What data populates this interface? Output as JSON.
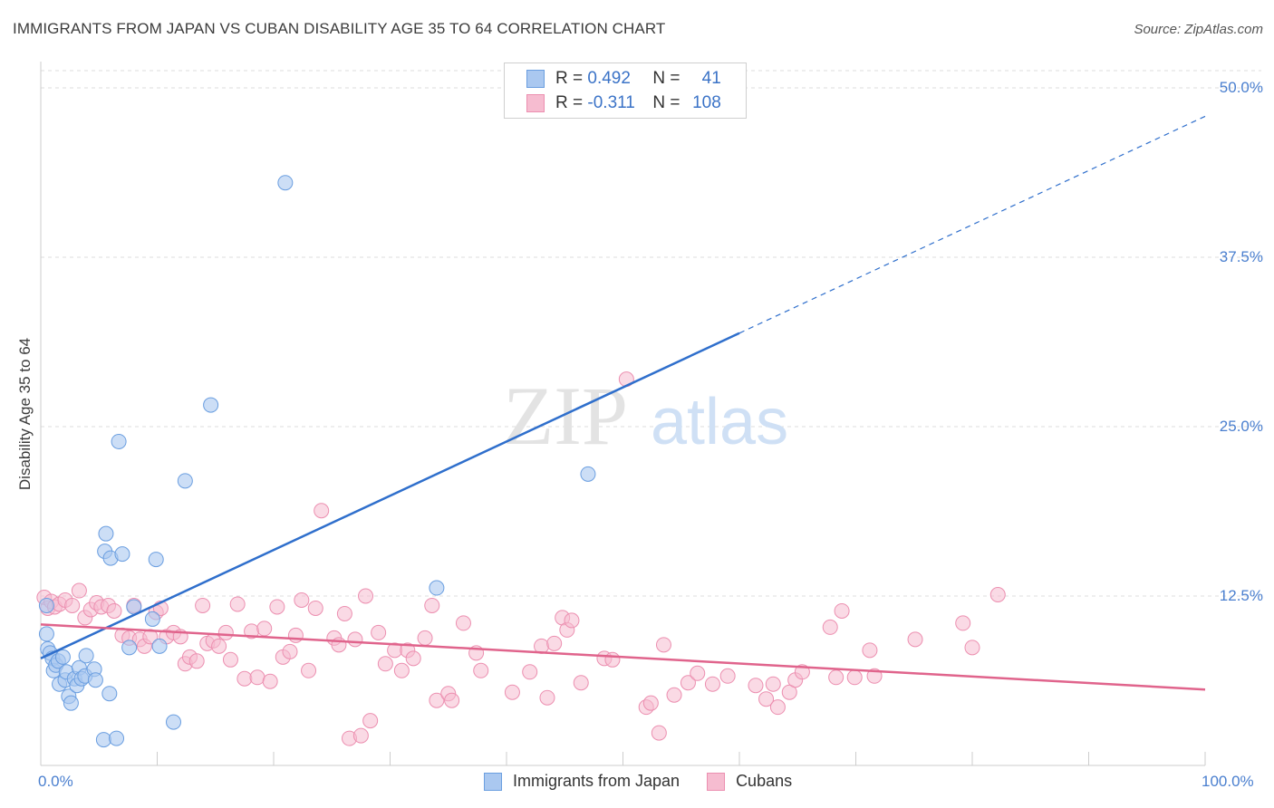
{
  "title": "IMMIGRANTS FROM JAPAN VS CUBAN DISABILITY AGE 35 TO 64 CORRELATION CHART",
  "source": "Source: ZipAtlas.com",
  "watermark": {
    "zip": "ZIP",
    "atlas": "atlas"
  },
  "legend": {
    "r_label": "R =",
    "n_label": "N =",
    "series1": {
      "r": "0.492",
      "n": "41"
    },
    "series2": {
      "r": "-0.311",
      "n": "108"
    }
  },
  "colors": {
    "japan_fill": "#aac8f0",
    "japan_stroke": "#6a9ee0",
    "japan_line": "#2f6fcc",
    "cuban_fill": "#f6bcd0",
    "cuban_stroke": "#ec8fb0",
    "cuban_line": "#e0648c",
    "tick_text": "#4a7fcf",
    "grid": "#dcdcdc"
  },
  "chart_data": {
    "type": "scatter",
    "title": "IMMIGRANTS FROM JAPAN VS CUBAN DISABILITY AGE 35 TO 64 CORRELATION CHART",
    "xlabel": "",
    "ylabel": "Disability Age 35 to 64",
    "xlim": [
      0,
      100
    ],
    "ylim": [
      0,
      50
    ],
    "x_tick_labels": [
      "0.0%",
      "100.0%"
    ],
    "y_ticks": [
      12.5,
      25.0,
      37.5,
      50.0
    ],
    "y_tick_labels": [
      "12.5%",
      "25.0%",
      "37.5%",
      "50.0%"
    ],
    "grid": true,
    "legend_position": "bottom-center",
    "series": [
      {
        "name": "Immigrants from Japan",
        "r": 0.492,
        "n": 41,
        "trend": {
          "x0": 0,
          "y0": 7.9,
          "x1": 60,
          "y1": 31.9,
          "dash_x1": 100,
          "dash_y1": 47.9
        },
        "points": [
          [
            0.5,
            11.8
          ],
          [
            0.5,
            9.7
          ],
          [
            0.6,
            8.6
          ],
          [
            0.8,
            8.3
          ],
          [
            1.0,
            7.9
          ],
          [
            1.1,
            7.0
          ],
          [
            1.3,
            7.4
          ],
          [
            1.5,
            7.7
          ],
          [
            1.6,
            6.0
          ],
          [
            1.9,
            8.0
          ],
          [
            2.1,
            6.3
          ],
          [
            2.2,
            6.9
          ],
          [
            2.4,
            5.1
          ],
          [
            2.6,
            4.6
          ],
          [
            2.9,
            6.4
          ],
          [
            3.1,
            5.9
          ],
          [
            3.3,
            7.2
          ],
          [
            3.5,
            6.4
          ],
          [
            3.8,
            6.6
          ],
          [
            3.9,
            8.1
          ],
          [
            4.6,
            7.1
          ],
          [
            4.7,
            6.3
          ],
          [
            5.4,
            1.9
          ],
          [
            5.5,
            15.8
          ],
          [
            5.6,
            17.1
          ],
          [
            5.9,
            5.3
          ],
          [
            6.0,
            15.3
          ],
          [
            6.5,
            2.0
          ],
          [
            7.0,
            15.6
          ],
          [
            7.6,
            8.7
          ],
          [
            8.0,
            11.7
          ],
          [
            9.6,
            10.8
          ],
          [
            9.9,
            15.2
          ],
          [
            10.2,
            8.8
          ],
          [
            11.4,
            3.2
          ],
          [
            12.4,
            21.0
          ],
          [
            14.6,
            26.6
          ],
          [
            21.0,
            43.0
          ],
          [
            34.0,
            13.1
          ],
          [
            47.0,
            21.5
          ],
          [
            6.7,
            23.9
          ]
        ]
      },
      {
        "name": "Cubans",
        "r": -0.311,
        "n": 108,
        "trend": {
          "x0": 0,
          "y0": 10.4,
          "x1": 100,
          "y1": 5.6
        },
        "points": [
          [
            0.3,
            12.4
          ],
          [
            0.6,
            11.6
          ],
          [
            0.9,
            12.1
          ],
          [
            1.2,
            11.7
          ],
          [
            1.6,
            11.9
          ],
          [
            2.1,
            12.2
          ],
          [
            2.7,
            11.8
          ],
          [
            3.3,
            12.9
          ],
          [
            3.8,
            10.9
          ],
          [
            4.3,
            11.5
          ],
          [
            4.8,
            12.0
          ],
          [
            5.2,
            11.7
          ],
          [
            5.8,
            11.8
          ],
          [
            6.3,
            11.4
          ],
          [
            7.0,
            9.6
          ],
          [
            7.6,
            9.4
          ],
          [
            8.0,
            11.8
          ],
          [
            8.5,
            9.3
          ],
          [
            8.9,
            8.8
          ],
          [
            9.4,
            9.5
          ],
          [
            9.9,
            11.3
          ],
          [
            10.3,
            11.6
          ],
          [
            10.8,
            9.5
          ],
          [
            11.4,
            9.8
          ],
          [
            12.0,
            9.5
          ],
          [
            12.4,
            7.5
          ],
          [
            12.8,
            8.0
          ],
          [
            13.4,
            7.7
          ],
          [
            13.9,
            11.8
          ],
          [
            14.3,
            9.0
          ],
          [
            14.8,
            9.2
          ],
          [
            15.3,
            8.8
          ],
          [
            15.9,
            9.8
          ],
          [
            16.3,
            7.8
          ],
          [
            16.9,
            11.9
          ],
          [
            17.5,
            6.4
          ],
          [
            18.1,
            9.9
          ],
          [
            18.6,
            6.5
          ],
          [
            19.2,
            10.1
          ],
          [
            19.7,
            6.2
          ],
          [
            20.3,
            11.7
          ],
          [
            20.8,
            8.0
          ],
          [
            21.4,
            8.4
          ],
          [
            21.9,
            9.6
          ],
          [
            22.4,
            12.2
          ],
          [
            23.0,
            7.0
          ],
          [
            23.6,
            11.6
          ],
          [
            24.1,
            18.8
          ],
          [
            25.2,
            9.4
          ],
          [
            25.6,
            8.9
          ],
          [
            26.1,
            11.2
          ],
          [
            26.5,
            2.0
          ],
          [
            27.0,
            9.3
          ],
          [
            27.5,
            2.2
          ],
          [
            27.9,
            12.5
          ],
          [
            28.3,
            3.3
          ],
          [
            29.0,
            9.8
          ],
          [
            29.6,
            7.5
          ],
          [
            30.4,
            8.5
          ],
          [
            31.0,
            7.0
          ],
          [
            31.5,
            8.5
          ],
          [
            32.0,
            7.9
          ],
          [
            33.0,
            9.4
          ],
          [
            33.6,
            11.8
          ],
          [
            34.0,
            4.8
          ],
          [
            35.0,
            5.3
          ],
          [
            35.3,
            4.8
          ],
          [
            36.3,
            10.5
          ],
          [
            37.4,
            8.3
          ],
          [
            37.8,
            7.0
          ],
          [
            40.5,
            5.4
          ],
          [
            42.0,
            6.9
          ],
          [
            43.0,
            8.8
          ],
          [
            43.5,
            5.0
          ],
          [
            44.1,
            9.0
          ],
          [
            44.8,
            10.9
          ],
          [
            45.2,
            10.0
          ],
          [
            45.6,
            10.7
          ],
          [
            46.4,
            6.1
          ],
          [
            48.4,
            7.9
          ],
          [
            49.1,
            7.8
          ],
          [
            50.3,
            28.5
          ],
          [
            52.0,
            4.3
          ],
          [
            52.4,
            4.6
          ],
          [
            53.1,
            2.4
          ],
          [
            54.4,
            5.2
          ],
          [
            55.6,
            6.1
          ],
          [
            56.4,
            6.8
          ],
          [
            57.7,
            6.0
          ],
          [
            59.0,
            6.6
          ],
          [
            61.4,
            5.9
          ],
          [
            62.3,
            4.9
          ],
          [
            62.9,
            6.0
          ],
          [
            63.3,
            4.3
          ],
          [
            64.3,
            5.4
          ],
          [
            64.8,
            6.3
          ],
          [
            65.4,
            6.9
          ],
          [
            67.8,
            10.2
          ],
          [
            68.3,
            6.5
          ],
          [
            68.8,
            11.4
          ],
          [
            69.9,
            6.5
          ],
          [
            71.6,
            6.6
          ],
          [
            71.2,
            8.5
          ],
          [
            75.1,
            9.3
          ],
          [
            79.2,
            10.5
          ],
          [
            80.0,
            8.7
          ],
          [
            82.2,
            12.6
          ],
          [
            53.5,
            8.9
          ]
        ]
      }
    ]
  },
  "bottom_legend": {
    "series1": "Immigrants from Japan",
    "series2": "Cubans"
  }
}
